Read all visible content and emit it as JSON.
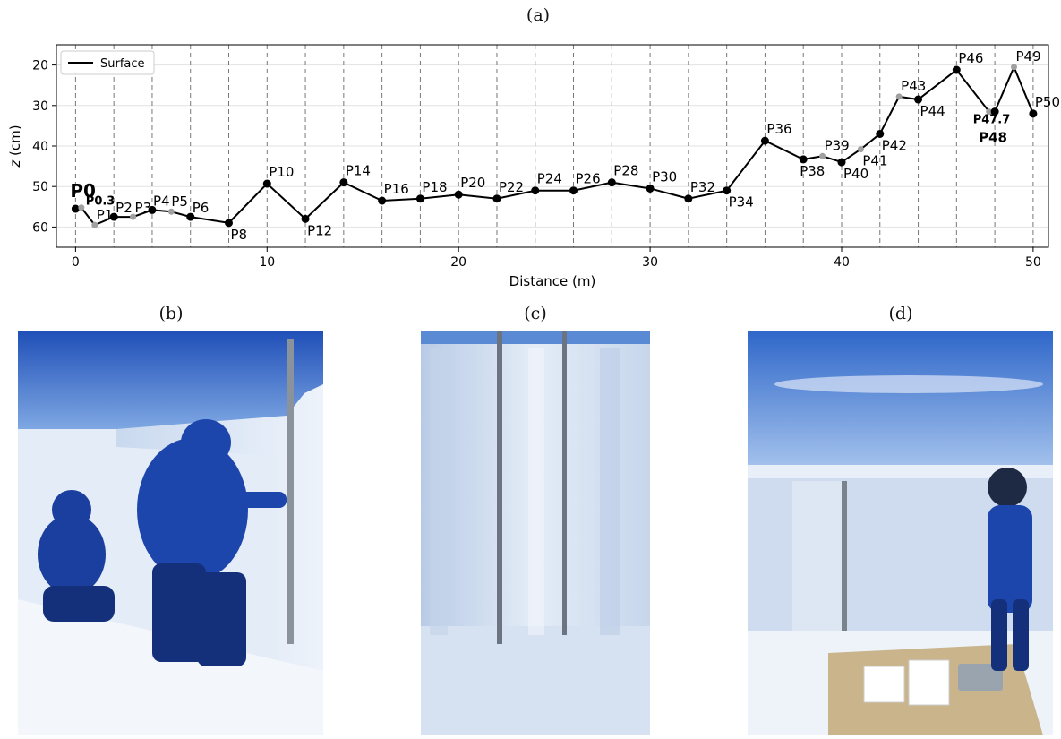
{
  "panels": {
    "a": "(a)",
    "b": "(b)",
    "c": "(c)",
    "d": "(d)"
  },
  "chart_data": {
    "type": "line",
    "title": "",
    "xlabel": "Distance (m)",
    "ylabel_italic": "z",
    "ylabel_rest": " (cm)",
    "xlim": [
      -1,
      50.8
    ],
    "ylim": [
      65,
      15
    ],
    "y_inverted": true,
    "grid": true,
    "legend": {
      "position": "top-left",
      "entries": [
        "Surface"
      ]
    },
    "x_ticks": [
      0,
      10,
      20,
      30,
      40,
      50
    ],
    "y_ticks": [
      20,
      30,
      40,
      50,
      60
    ],
    "vlines": [
      0,
      2,
      4,
      6,
      8,
      10,
      12,
      14,
      16,
      18,
      20,
      22,
      24,
      26,
      28,
      30,
      32,
      34,
      36,
      38,
      40,
      42,
      44,
      46,
      48,
      50
    ],
    "series": [
      {
        "name": "Surface",
        "points": [
          {
            "label": "P0",
            "x": 0,
            "y": 55.5,
            "marker": "black",
            "bold": true
          },
          {
            "label": "P0.3",
            "x": 0.3,
            "y": 55.2,
            "marker": "grey",
            "bold": true
          },
          {
            "label": "P1",
            "x": 1,
            "y": 59.5,
            "marker": "grey"
          },
          {
            "label": "P2",
            "x": 2,
            "y": 57.5,
            "marker": "black"
          },
          {
            "label": "P3",
            "x": 3,
            "y": 57.5,
            "marker": "grey"
          },
          {
            "label": "P4",
            "x": 4,
            "y": 55.8,
            "marker": "black"
          },
          {
            "label": "P5",
            "x": 5,
            "y": 56.2,
            "marker": "grey"
          },
          {
            "label": "P6",
            "x": 6,
            "y": 57.5,
            "marker": "black"
          },
          {
            "label": "P8",
            "x": 8,
            "y": 59,
            "marker": "black"
          },
          {
            "label": "P10",
            "x": 10,
            "y": 49.3,
            "marker": "black"
          },
          {
            "label": "P12",
            "x": 12,
            "y": 58,
            "marker": "black"
          },
          {
            "label": "P14",
            "x": 14,
            "y": 49,
            "marker": "black"
          },
          {
            "label": "P16",
            "x": 16,
            "y": 53.5,
            "marker": "black"
          },
          {
            "label": "P18",
            "x": 18,
            "y": 53,
            "marker": "black"
          },
          {
            "label": "P20",
            "x": 20,
            "y": 52,
            "marker": "black"
          },
          {
            "label": "P22",
            "x": 22,
            "y": 53,
            "marker": "black"
          },
          {
            "label": "P24",
            "x": 24,
            "y": 51,
            "marker": "black"
          },
          {
            "label": "P26",
            "x": 26,
            "y": 51,
            "marker": "black"
          },
          {
            "label": "P28",
            "x": 28,
            "y": 49,
            "marker": "black"
          },
          {
            "label": "P30",
            "x": 30,
            "y": 50.5,
            "marker": "black"
          },
          {
            "label": "P32",
            "x": 32,
            "y": 53,
            "marker": "black"
          },
          {
            "label": "P34",
            "x": 34,
            "y": 51,
            "marker": "black"
          },
          {
            "label": "P36",
            "x": 36,
            "y": 38.7,
            "marker": "black"
          },
          {
            "label": "P38",
            "x": 38,
            "y": 43.3,
            "marker": "black"
          },
          {
            "label": "P39",
            "x": 39,
            "y": 42.5,
            "marker": "grey"
          },
          {
            "label": "P40",
            "x": 40,
            "y": 44,
            "marker": "black"
          },
          {
            "label": "P41",
            "x": 41,
            "y": 40.8,
            "marker": "grey"
          },
          {
            "label": "P42",
            "x": 42,
            "y": 37,
            "marker": "black"
          },
          {
            "label": "P43",
            "x": 43,
            "y": 27.8,
            "marker": "grey"
          },
          {
            "label": "P44",
            "x": 44,
            "y": 28.5,
            "marker": "black"
          },
          {
            "label": "P46",
            "x": 46,
            "y": 21.2,
            "marker": "black"
          },
          {
            "label": "P47.7",
            "x": 47.7,
            "y": 31.5,
            "marker": "grey",
            "bold": true
          },
          {
            "label": "P48",
            "x": 48,
            "y": 31.5,
            "marker": "black",
            "bold": true
          },
          {
            "label": "P49",
            "x": 49,
            "y": 20.5,
            "marker": "grey"
          },
          {
            "label": "P50",
            "x": 50,
            "y": 32,
            "marker": "black"
          }
        ]
      }
    ]
  }
}
